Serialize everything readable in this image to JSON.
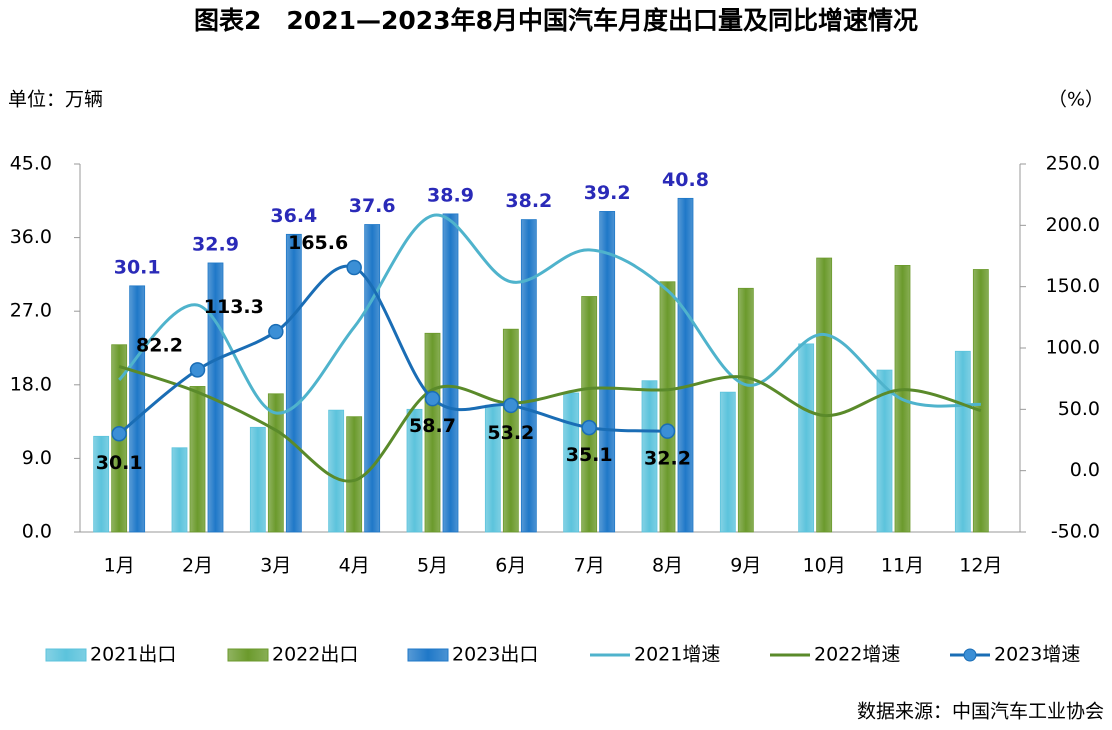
{
  "chart_data": {
    "type": "combo",
    "title": "图表2　2021—2023年8月中国汽车月度出口量及同比增速情况",
    "y_label": "单位：万辆",
    "y2_label": "（%）",
    "source": "数据来源：中国汽车工业协会",
    "categories": [
      "1月",
      "2月",
      "3月",
      "4月",
      "5月",
      "6月",
      "7月",
      "8月",
      "9月",
      "10月",
      "11月",
      "12月"
    ],
    "ylim": [
      0,
      45
    ],
    "yticks": [
      {
        "value": 0,
        "label": "0.0"
      },
      {
        "value": 9,
        "label": "9.0"
      },
      {
        "value": 18,
        "label": "18.0"
      },
      {
        "value": 27,
        "label": "27.0"
      },
      {
        "value": 36,
        "label": "36.0"
      },
      {
        "value": 45,
        "label": "45.0"
      }
    ],
    "y2lim": [
      -50,
      250
    ],
    "y2ticks": [
      {
        "value": -50,
        "label": "-50.0"
      },
      {
        "value": 0,
        "label": "0.0"
      },
      {
        "value": 50,
        "label": "50.0"
      },
      {
        "value": 100,
        "label": "100.0"
      },
      {
        "value": 150,
        "label": "150.0"
      },
      {
        "value": 200,
        "label": "200.0"
      },
      {
        "value": 250,
        "label": "250.0"
      }
    ],
    "legend": "bottom",
    "series": [
      {
        "name": "2021出口",
        "type": "bar",
        "color": "#5cc3dc",
        "values": [
          11.7,
          10.3,
          12.8,
          14.9,
          15.0,
          15.5,
          17.0,
          18.5,
          17.1,
          23.0,
          19.8,
          22.1
        ]
      },
      {
        "name": "2022出口",
        "type": "bar",
        "color": "#6b9a2c",
        "values": [
          22.9,
          17.8,
          16.9,
          14.1,
          24.3,
          24.8,
          28.8,
          30.6,
          29.8,
          33.5,
          32.6,
          32.1
        ]
      },
      {
        "name": "2023出口",
        "type": "bar",
        "color": "#1f78c8",
        "values": [
          30.1,
          32.9,
          36.4,
          37.6,
          38.9,
          38.2,
          39.2,
          40.8,
          null,
          null,
          null,
          null
        ],
        "data_labels": true
      },
      {
        "name": "2021增速",
        "type": "line",
        "axis": "y2",
        "color": "#4fb3cc",
        "values": [
          74,
          135,
          47,
          117,
          208,
          154,
          180,
          147,
          70,
          111,
          58,
          54
        ]
      },
      {
        "name": "2022增速",
        "type": "line",
        "axis": "y2",
        "color": "#5a8a2a",
        "values": [
          85,
          64,
          33,
          -8,
          66,
          55,
          67,
          66,
          76,
          45,
          66,
          49
        ]
      },
      {
        "name": "2023增速",
        "type": "line",
        "axis": "y2",
        "color": "#1a6db5",
        "markers": true,
        "data_labels": true,
        "values": [
          30.1,
          82.2,
          113.3,
          165.6,
          58.7,
          53.2,
          35.1,
          32.2,
          null,
          null,
          null,
          null
        ]
      }
    ]
  }
}
